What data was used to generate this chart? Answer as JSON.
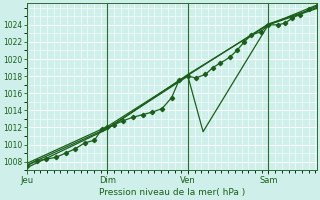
{
  "xlabel": "Pression niveau de la mer( hPa )",
  "bg_color": "#cff0ea",
  "grid_color": "#ffffff",
  "line_color": "#1a5e1a",
  "ylim": [
    1007.0,
    1026.5
  ],
  "yticks": [
    1008,
    1010,
    1012,
    1014,
    1016,
    1018,
    1020,
    1022,
    1024
  ],
  "day_positions": [
    0.0,
    0.333,
    0.667,
    1.0
  ],
  "day_labels": [
    "Jeu",
    "Dim",
    "Ven",
    "Sam"
  ],
  "xlim": [
    0.0,
    1.2
  ],
  "series1": [
    [
      0.0,
      1007.5
    ],
    [
      0.04,
      1008.1
    ],
    [
      0.08,
      1008.3
    ],
    [
      0.12,
      1008.5
    ],
    [
      0.16,
      1009.0
    ],
    [
      0.2,
      1009.5
    ],
    [
      0.24,
      1010.2
    ],
    [
      0.28,
      1010.5
    ],
    [
      0.31,
      1011.8
    ],
    [
      0.333,
      1012.0
    ],
    [
      0.36,
      1012.3
    ],
    [
      0.4,
      1012.8
    ],
    [
      0.44,
      1013.2
    ],
    [
      0.48,
      1013.5
    ],
    [
      0.52,
      1013.8
    ],
    [
      0.56,
      1014.2
    ],
    [
      0.6,
      1015.5
    ],
    [
      0.63,
      1017.5
    ],
    [
      0.667,
      1018.0
    ],
    [
      0.7,
      1017.8
    ],
    [
      0.74,
      1018.2
    ],
    [
      0.77,
      1019.0
    ],
    [
      0.8,
      1019.5
    ],
    [
      0.84,
      1020.2
    ],
    [
      0.87,
      1021.0
    ],
    [
      0.9,
      1022.0
    ],
    [
      0.93,
      1022.8
    ],
    [
      0.97,
      1023.2
    ],
    [
      1.0,
      1024.0
    ],
    [
      1.04,
      1024.0
    ],
    [
      1.07,
      1024.2
    ],
    [
      1.1,
      1024.8
    ],
    [
      1.13,
      1025.2
    ],
    [
      1.17,
      1025.8
    ],
    [
      1.2,
      1026.2
    ]
  ],
  "series2": [
    [
      0.0,
      1007.3
    ],
    [
      0.333,
      1011.8
    ],
    [
      0.667,
      1018.2
    ],
    [
      1.0,
      1024.0
    ],
    [
      1.2,
      1026.3
    ]
  ],
  "series3": [
    [
      0.0,
      1007.6
    ],
    [
      0.333,
      1011.9
    ],
    [
      0.667,
      1018.0
    ],
    [
      0.73,
      1011.5
    ],
    [
      1.0,
      1024.0
    ],
    [
      1.2,
      1025.9
    ]
  ],
  "series4": [
    [
      0.0,
      1007.8
    ],
    [
      0.333,
      1012.1
    ],
    [
      0.667,
      1018.1
    ],
    [
      1.0,
      1024.1
    ],
    [
      1.2,
      1026.0
    ]
  ]
}
